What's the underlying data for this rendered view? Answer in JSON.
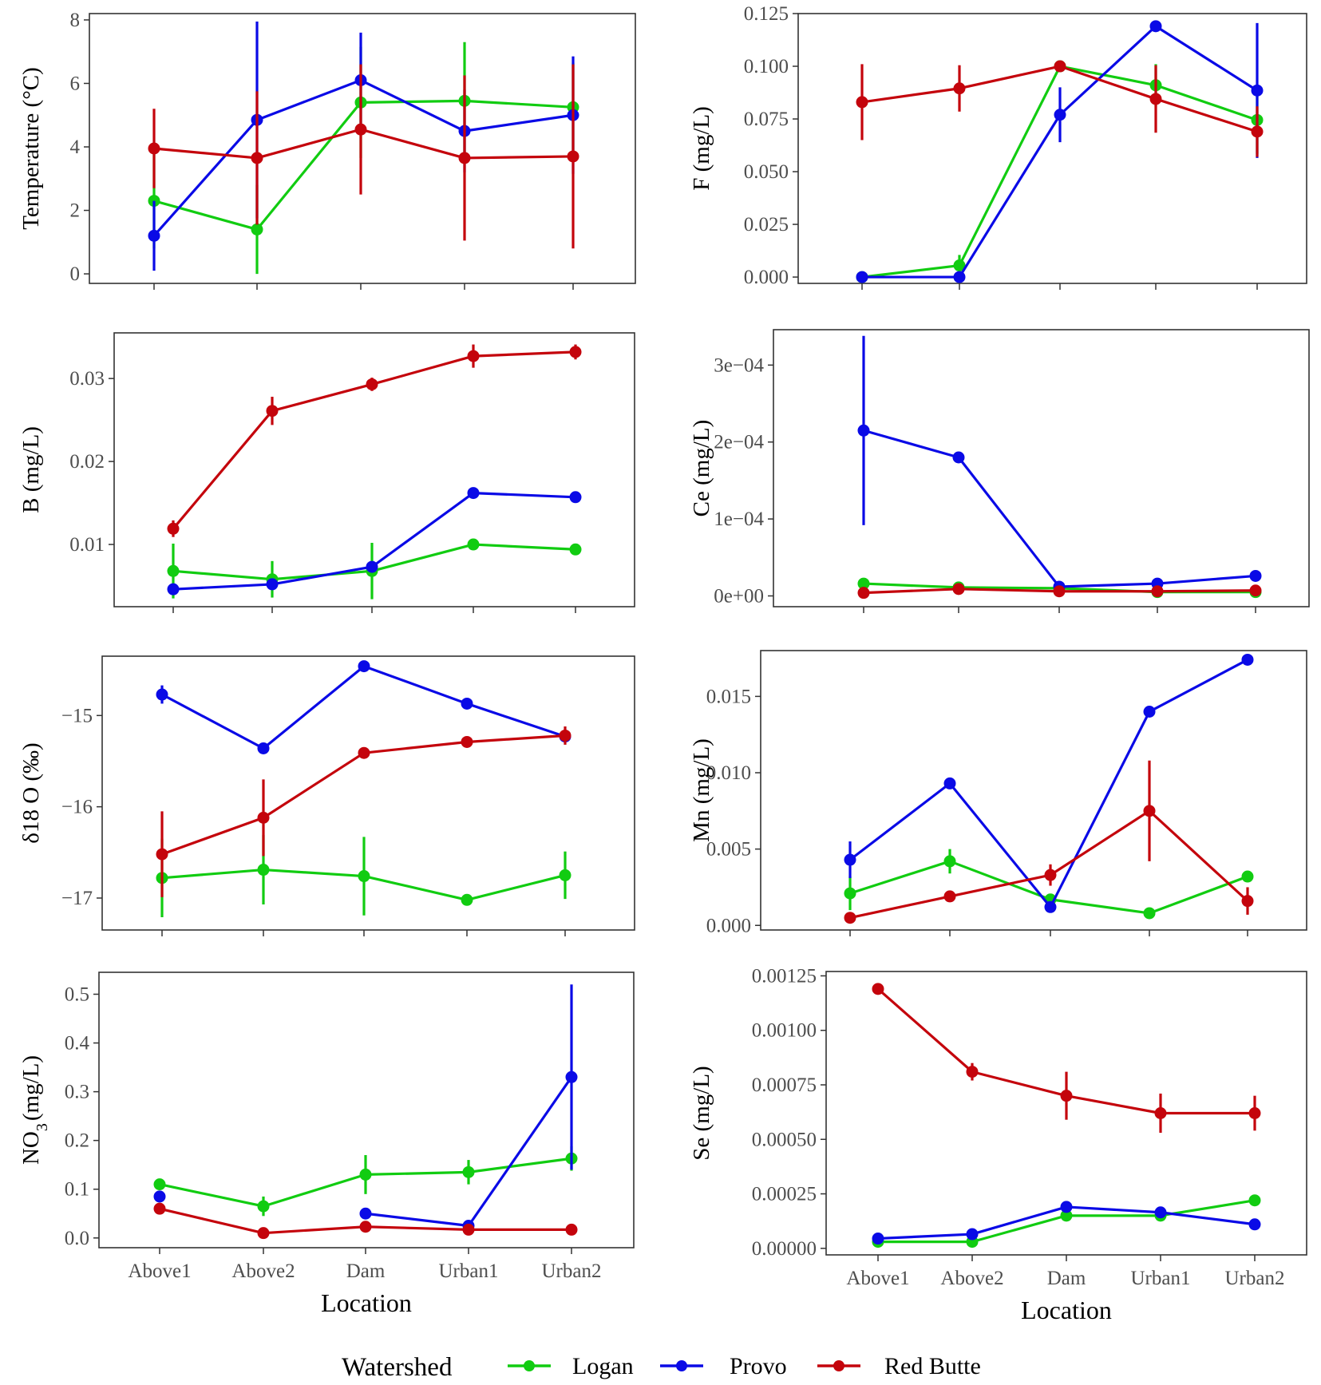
{
  "colors": {
    "Logan": "#11cc11",
    "Provo": "#0a0ae6",
    "Red Butte": "#c4040c"
  },
  "legend": {
    "title": "Watershed",
    "items": [
      "Logan",
      "Provo",
      "Red Butte"
    ]
  },
  "chart_data": [
    {
      "type": "line",
      "id": "temperature",
      "ylabel": "Temperature (°C)",
      "ylim": [
        -0.3,
        8.2
      ],
      "yticks": [
        0,
        2,
        4,
        6,
        8
      ],
      "yticklabels": [
        "0",
        "2",
        "4",
        "6",
        "8"
      ],
      "categories": [
        "Above1",
        "Above2",
        "Dam",
        "Urban1",
        "Urban2"
      ],
      "show_xlabels": false,
      "xlabel": "",
      "series": [
        {
          "name": "Logan",
          "values": [
            2.3,
            1.4,
            5.4,
            5.45,
            5.25
          ],
          "err": [
            1.5,
            1.4,
            1.75,
            1.85,
            1.4
          ]
        },
        {
          "name": "Provo",
          "values": [
            1.2,
            4.85,
            6.1,
            4.5,
            5.0
          ],
          "err": [
            1.1,
            3.1,
            1.5,
            1.3,
            1.85
          ]
        },
        {
          "name": "Red Butte",
          "values": [
            3.95,
            3.65,
            4.55,
            3.65,
            3.7
          ],
          "err": [
            1.25,
            2.1,
            2.05,
            2.6,
            2.9
          ]
        }
      ]
    },
    {
      "type": "line",
      "id": "fluoride",
      "ylabel": "F (mg/L)",
      "ylim": [
        -0.003,
        0.125
      ],
      "yticks": [
        0,
        0.025,
        0.05,
        0.075,
        0.1,
        0.125
      ],
      "yticklabels": [
        "0.000",
        "0.025",
        "0.050",
        "0.075",
        "0.100",
        "0.125"
      ],
      "categories": [
        "Above1",
        "Above2",
        "Dam",
        "Urban1",
        "Urban2"
      ],
      "show_xlabels": false,
      "xlabel": "",
      "series": [
        {
          "name": "Logan",
          "values": [
            0.0,
            0.0055,
            0.1,
            0.091,
            0.0745
          ],
          "err": [
            0,
            0.005,
            0,
            0.01,
            0.016
          ]
        },
        {
          "name": "Provo",
          "values": [
            0.0,
            0.0,
            0.077,
            0.119,
            0.0885
          ],
          "err": [
            0,
            0,
            0.013,
            0,
            0.032
          ]
        },
        {
          "name": "Red Butte",
          "values": [
            0.083,
            0.0895,
            0.1,
            0.0845,
            0.069
          ],
          "err": [
            0.018,
            0.011,
            0,
            0.016,
            0.012
          ]
        }
      ]
    },
    {
      "type": "line",
      "id": "boron",
      "ylabel": "B (mg/L)",
      "ylim": [
        0.0025,
        0.0355
      ],
      "yticks": [
        0.01,
        0.02,
        0.03
      ],
      "yticklabels": [
        "0.01",
        "0.02",
        "0.03"
      ],
      "categories": [
        "Above1",
        "Above2",
        "Dam",
        "Urban1",
        "Urban2"
      ],
      "show_xlabels": false,
      "xlabel": "",
      "series": [
        {
          "name": "Logan",
          "values": [
            0.0068,
            0.0058,
            0.0068,
            0.01,
            0.0094
          ],
          "err": [
            0.0033,
            0.0022,
            0.0034,
            0,
            0.0005
          ]
        },
        {
          "name": "Provo",
          "values": [
            0.0046,
            0.0052,
            0.0073,
            0.0162,
            0.0157
          ],
          "err": [
            0,
            0,
            0,
            0,
            0
          ]
        },
        {
          "name": "Red Butte",
          "values": [
            0.0119,
            0.0261,
            0.0293,
            0.0327,
            0.0332
          ],
          "err": [
            0.001,
            0.0017,
            0.0008,
            0.0014,
            0.0009
          ]
        }
      ]
    },
    {
      "type": "line",
      "id": "cerium",
      "ylabel": "Ce (mg/L)",
      "ylim": [
        -1.4e-05,
        0.000346
      ],
      "yticks": [
        0,
        0.0001,
        0.0002,
        0.0003
      ],
      "yticklabels": [
        "0e+00",
        "1e−04",
        "2e−04",
        "3e−04"
      ],
      "categories": [
        "Above1",
        "Above2",
        "Dam",
        "Urban1",
        "Urban2"
      ],
      "show_xlabels": false,
      "xlabel": "",
      "series": [
        {
          "name": "Logan",
          "values": [
            1.6e-05,
            1.1e-05,
            1e-05,
            5e-06,
            5e-06
          ],
          "err": [
            0,
            0,
            0,
            0,
            0
          ]
        },
        {
          "name": "Provo",
          "values": [
            0.000215,
            0.00018,
            1.2e-05,
            1.6e-05,
            2.6e-05
          ],
          "err": [
            0.000123,
            0,
            0,
            0,
            0
          ]
        },
        {
          "name": "Red Butte",
          "values": [
            4e-06,
            9e-06,
            6e-06,
            6e-06,
            7e-06
          ],
          "err": [
            0,
            0,
            0,
            0,
            0
          ]
        }
      ]
    },
    {
      "type": "line",
      "id": "delta18o",
      "ylabel": "δ18 O (‰)",
      "ylim": [
        -17.35,
        -14.35
      ],
      "yticks": [
        -17,
        -16,
        -15
      ],
      "yticklabels": [
        "−17",
        "−16",
        "−15"
      ],
      "categories": [
        "Above1",
        "Above2",
        "Dam",
        "Urban1",
        "Urban2"
      ],
      "show_xlabels": false,
      "xlabel": "",
      "series": [
        {
          "name": "Logan",
          "values": [
            -16.78,
            -16.69,
            -16.76,
            -17.02,
            -16.75
          ],
          "err": [
            0.43,
            0.38,
            0.43,
            0,
            0.26
          ]
        },
        {
          "name": "Provo",
          "values": [
            -14.77,
            -15.36,
            -14.46,
            -14.87,
            -15.23
          ],
          "err": [
            0.1,
            0,
            0,
            0,
            0
          ]
        },
        {
          "name": "Red Butte",
          "values": [
            -16.52,
            -16.12,
            -15.41,
            -15.29,
            -15.22
          ],
          "err": [
            0.47,
            0.42,
            0,
            0,
            0.1
          ]
        }
      ]
    },
    {
      "type": "line",
      "id": "manganese",
      "ylabel": "Mn (mg/L)",
      "ylim": [
        -0.0003,
        0.018
      ],
      "yticks": [
        0,
        0.005,
        0.01,
        0.015
      ],
      "yticklabels": [
        "0.000",
        "0.005",
        "0.010",
        "0.015"
      ],
      "categories": [
        "Above1",
        "Above2",
        "Dam",
        "Urban1",
        "Urban2"
      ],
      "show_xlabels": false,
      "xlabel": "",
      "series": [
        {
          "name": "Logan",
          "values": [
            0.0021,
            0.0042,
            0.0017,
            0.0008,
            0.0032
          ],
          "err": [
            0.0011,
            0.0008,
            0,
            0,
            0
          ]
        },
        {
          "name": "Provo",
          "values": [
            0.0043,
            0.0093,
            0.0012,
            0.014,
            0.0174
          ],
          "err": [
            0.0012,
            0,
            0,
            0,
            0
          ]
        },
        {
          "name": "Red Butte",
          "values": [
            0.0005,
            0.0019,
            0.0033,
            0.0075,
            0.0016
          ],
          "err": [
            0,
            0,
            0.0007,
            0.0033,
            0.0009
          ]
        }
      ]
    },
    {
      "type": "line",
      "id": "nitrate",
      "ylabel": "NO3 (mg/L)",
      "ylim": [
        -0.02,
        0.545
      ],
      "yticks": [
        0,
        0.1,
        0.2,
        0.3,
        0.4,
        0.5
      ],
      "yticklabels": [
        "0.0",
        "0.1",
        "0.2",
        "0.3",
        "0.4",
        "0.5"
      ],
      "categories": [
        "Above1",
        "Above2",
        "Dam",
        "Urban1",
        "Urban2"
      ],
      "show_xlabels": true,
      "xlabel": "Location",
      "series": [
        {
          "name": "Logan",
          "values": [
            0.11,
            0.065,
            0.13,
            0.135,
            0.163
          ],
          "err": [
            0,
            0.02,
            0.04,
            0.025,
            0.025
          ]
        },
        {
          "name": "Provo",
          "values": [
            0.085,
            null,
            0.05,
            0.025,
            0.33
          ],
          "err": [
            0,
            0,
            0,
            0,
            0.19
          ]
        },
        {
          "name": "Red Butte",
          "values": [
            0.06,
            0.01,
            0.023,
            0.017,
            0.017
          ],
          "err": [
            0,
            0,
            0,
            0,
            0
          ]
        }
      ]
    },
    {
      "type": "line",
      "id": "selenium",
      "ylabel": "Se (mg/L)",
      "ylim": [
        -3e-05,
        0.00127
      ],
      "yticks": [
        0,
        0.00025,
        0.0005,
        0.00075,
        0.001,
        0.00125
      ],
      "yticklabels": [
        "0.00000",
        "0.00025",
        "0.00050",
        "0.00075",
        "0.00100",
        "0.00125"
      ],
      "categories": [
        "Above1",
        "Above2",
        "Dam",
        "Urban1",
        "Urban2"
      ],
      "show_xlabels": true,
      "xlabel": "Location",
      "series": [
        {
          "name": "Logan",
          "values": [
            3e-05,
            3e-05,
            0.00015,
            0.00015,
            0.00022
          ],
          "err": [
            0,
            0,
            0,
            0,
            0
          ]
        },
        {
          "name": "Provo",
          "values": [
            4.5e-05,
            6.5e-05,
            0.00019,
            0.000165,
            0.00011
          ],
          "err": [
            0,
            0,
            0,
            0,
            0
          ]
        },
        {
          "name": "Red Butte",
          "values": [
            0.00119,
            0.00081,
            0.0007,
            0.00062,
            0.00062
          ],
          "err": [
            2e-05,
            4e-05,
            0.00011,
            9e-05,
            8e-05
          ]
        }
      ]
    }
  ]
}
